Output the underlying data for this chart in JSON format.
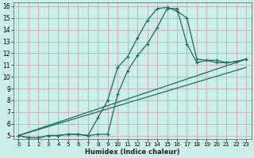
{
  "xlabel": "Humidex (Indice chaleur)",
  "bg_color": "#cceee8",
  "grid_color": "#c8a8b0",
  "line_color": "#1a6e60",
  "xlim": [
    -0.5,
    23.5
  ],
  "ylim": [
    4.7,
    16.3
  ],
  "xticks": [
    0,
    1,
    2,
    3,
    4,
    5,
    6,
    7,
    8,
    9,
    10,
    11,
    12,
    13,
    14,
    15,
    16,
    17,
    18,
    19,
    20,
    21,
    22,
    23
  ],
  "yticks": [
    5,
    6,
    7,
    8,
    9,
    10,
    11,
    12,
    13,
    14,
    15,
    16
  ],
  "curve1_x": [
    0,
    1,
    2,
    3,
    4,
    5,
    6,
    7,
    8,
    9,
    10,
    11,
    12,
    13,
    14,
    15,
    16,
    17,
    18,
    19,
    20,
    21,
    22,
    23
  ],
  "curve1_y": [
    5.0,
    4.8,
    4.8,
    5.0,
    5.0,
    5.1,
    5.1,
    5.0,
    6.5,
    8.0,
    10.8,
    11.7,
    13.3,
    14.8,
    15.8,
    15.9,
    15.6,
    15.0,
    11.5,
    11.4,
    11.4,
    11.2,
    11.3,
    11.5
  ],
  "curve2_x": [
    0,
    1,
    2,
    3,
    4,
    5,
    6,
    7,
    8,
    9,
    10,
    11,
    12,
    13,
    14,
    15,
    16,
    17,
    18,
    19,
    20,
    21,
    22,
    23
  ],
  "curve2_y": [
    5.0,
    4.8,
    4.8,
    5.0,
    5.0,
    5.1,
    5.1,
    5.0,
    5.1,
    5.1,
    8.5,
    10.5,
    11.8,
    12.8,
    14.2,
    15.8,
    15.8,
    12.8,
    11.2,
    11.4,
    11.2,
    11.2,
    11.3,
    11.5
  ],
  "line3_x": [
    0,
    23
  ],
  "line3_y": [
    5.0,
    11.5
  ],
  "line4_x": [
    0,
    23
  ],
  "line4_y": [
    5.0,
    10.8
  ]
}
